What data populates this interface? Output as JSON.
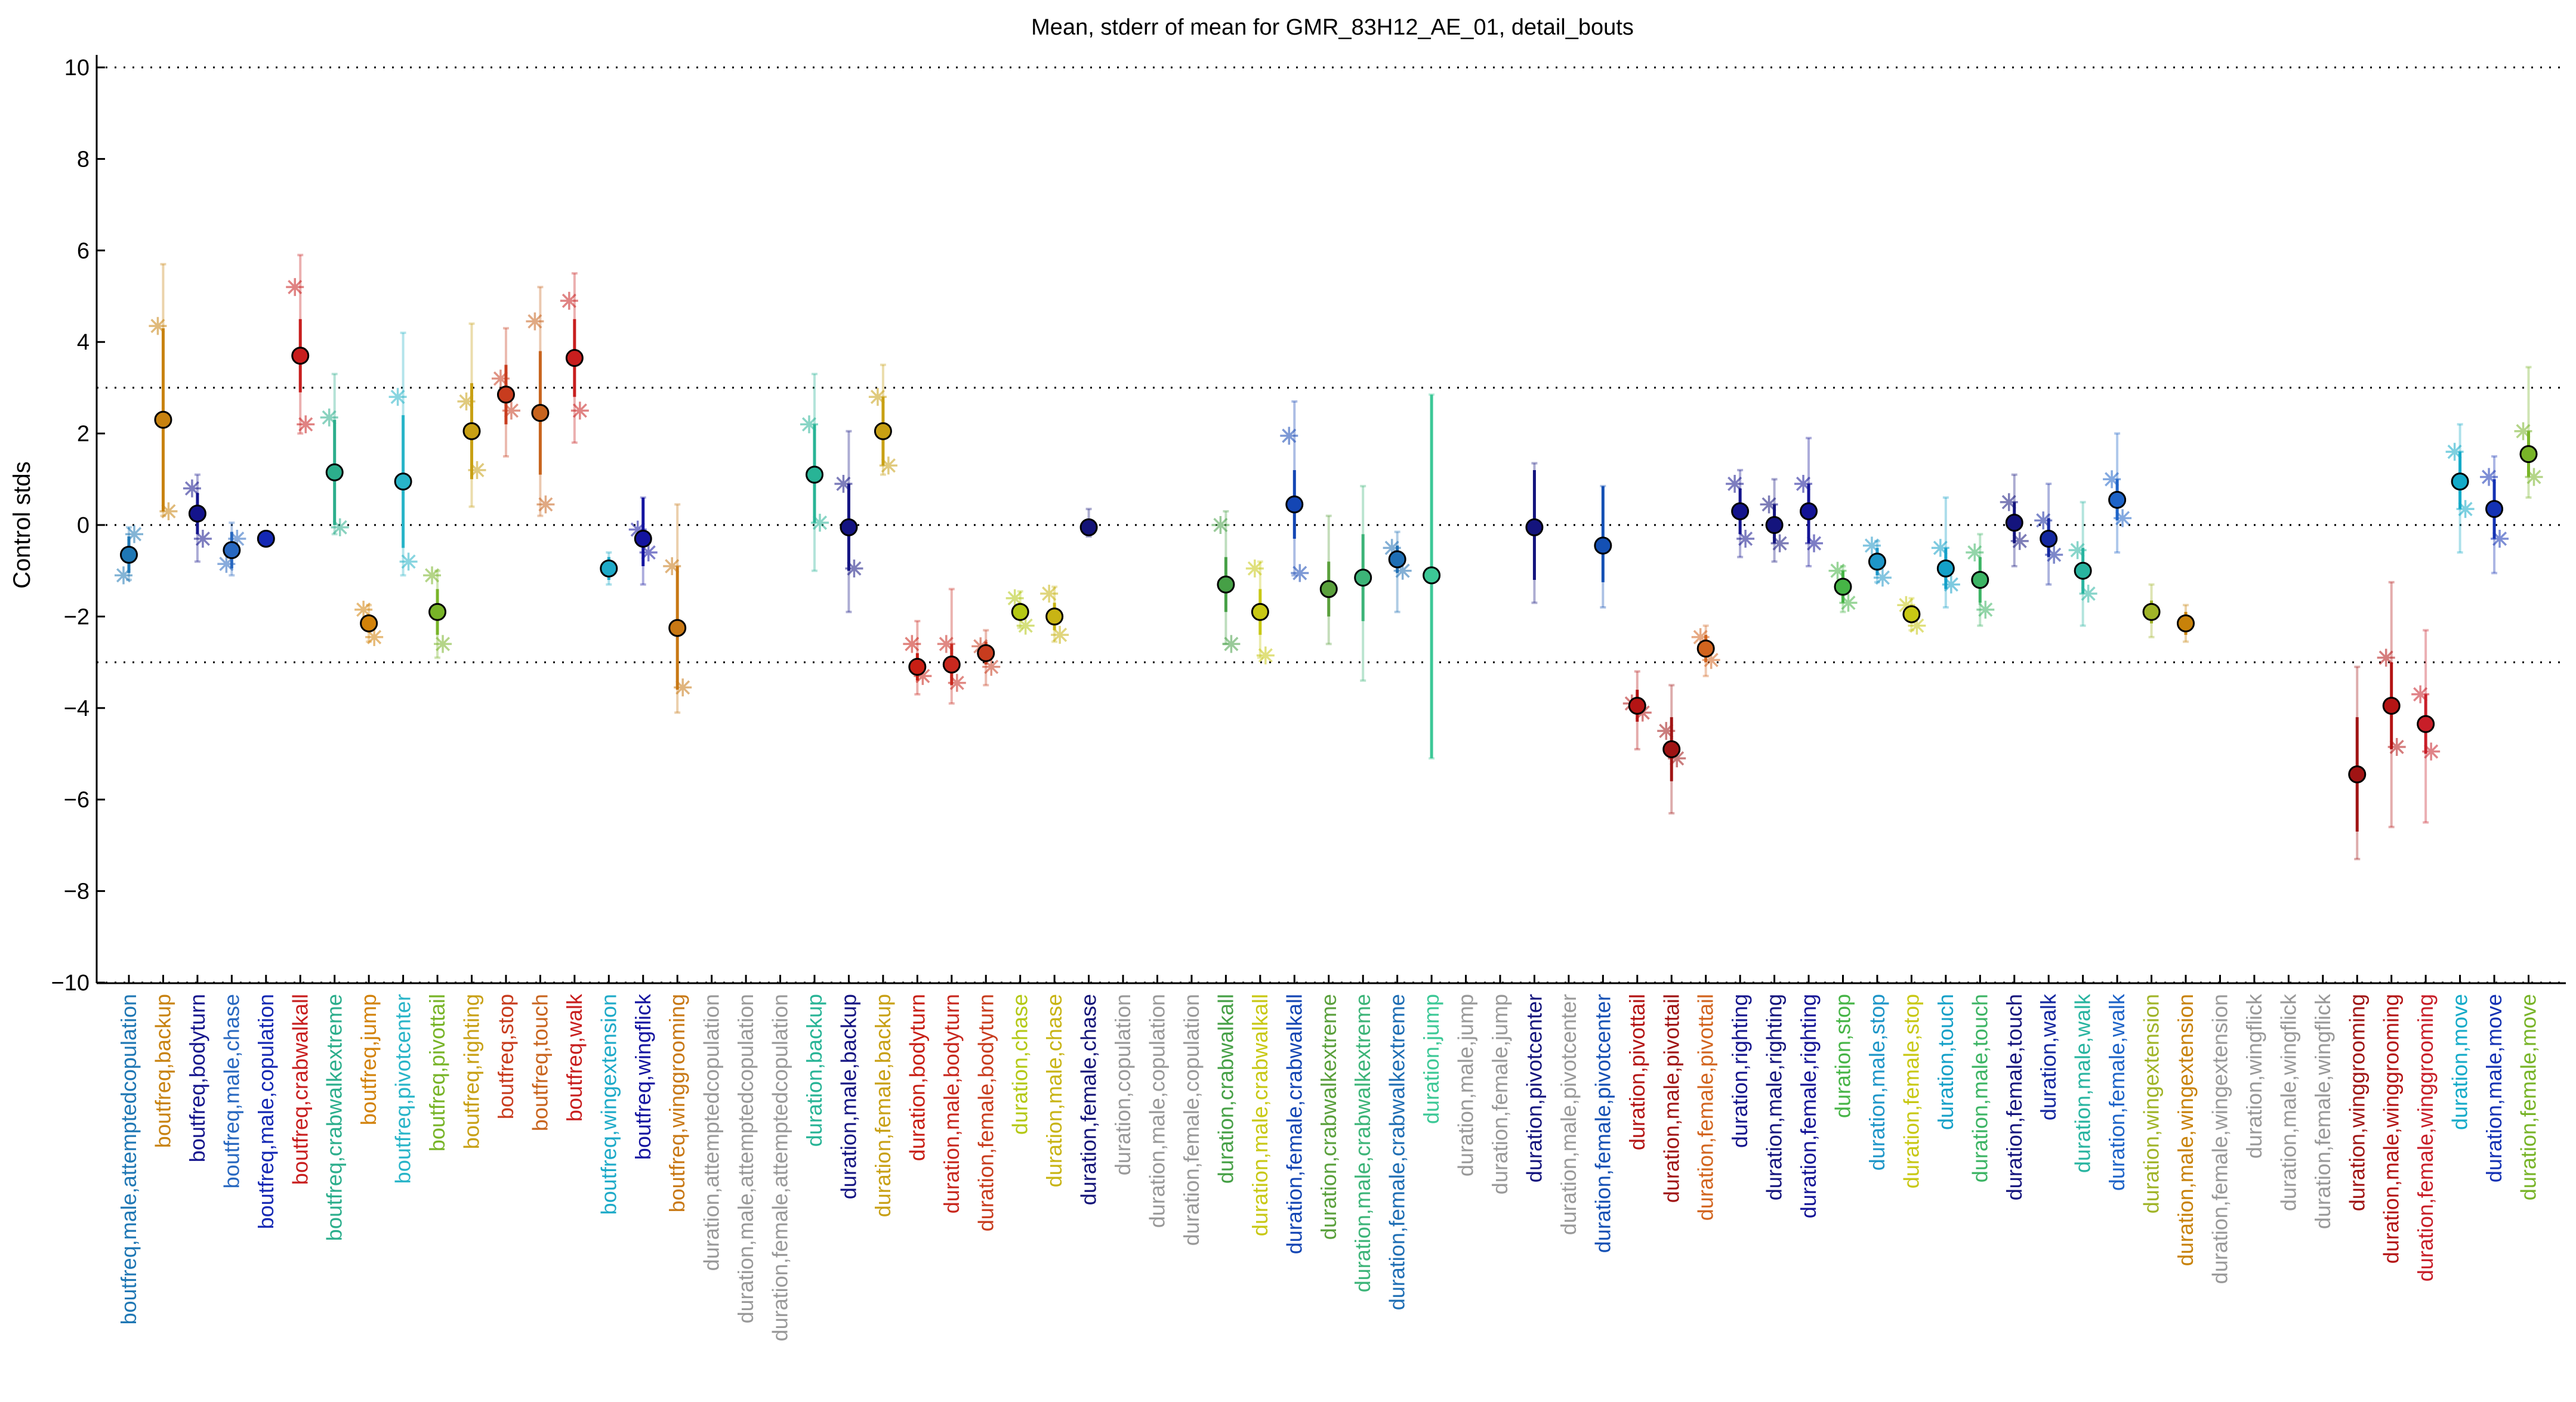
{
  "chart_data": {
    "type": "scatter",
    "title": "Mean, stderr of mean for GMR_83H12_AE_01, detail_bouts",
    "ylabel": "Control stds",
    "xlabel": "",
    "ylim": [
      -10.2,
      10.2
    ],
    "yticks": [
      -10,
      -8,
      -6,
      -4,
      -2,
      0,
      2,
      4,
      6,
      8,
      10
    ],
    "reference_lines": [
      10,
      3,
      0,
      -3,
      -10
    ],
    "grid": false,
    "points": [
      {
        "label": "boutfreq,male,attemptedcopulation",
        "color": "#1f77b4",
        "mean": -0.65,
        "sem_lo": -1.05,
        "sem_hi": -0.25,
        "range": [
          -1.2,
          -0.05
        ],
        "stars": [
          -1.1,
          -0.2
        ]
      },
      {
        "label": "boutfreq,backup",
        "color": "#c8820f",
        "mean": 2.3,
        "sem_lo": 0.3,
        "sem_hi": 4.3,
        "range": [
          0.2,
          5.7
        ],
        "stars": [
          4.35,
          0.3
        ]
      },
      {
        "label": "boutfreq,bodyturn",
        "color": "#14148c",
        "mean": 0.25,
        "sem_lo": -0.2,
        "sem_hi": 0.7,
        "range": [
          -0.8,
          1.1
        ],
        "stars": [
          0.8,
          -0.3
        ]
      },
      {
        "label": "boutfreq,male,chase",
        "color": "#2868c0",
        "mean": -0.55,
        "sem_lo": -0.95,
        "sem_hi": -0.15,
        "range": [
          -1.1,
          0.05
        ],
        "stars": [
          -0.85,
          -0.3
        ]
      },
      {
        "label": "boutfreq,male,copulation",
        "color": "#1428b4",
        "mean": -0.3,
        "sem_lo": -0.4,
        "sem_hi": -0.2,
        "range": [
          -0.45,
          -0.15
        ],
        "stars": []
      },
      {
        "label": "boutfreq,crabwalkall",
        "color": "#c81e1e",
        "mean": 3.7,
        "sem_lo": 2.9,
        "sem_hi": 4.5,
        "range": [
          2.0,
          5.9
        ],
        "stars": [
          5.2,
          2.2
        ]
      },
      {
        "label": "boutfreq,crabwalkextreme",
        "color": "#2cae8c",
        "mean": 1.15,
        "sem_lo": 0.0,
        "sem_hi": 2.3,
        "range": [
          -0.2,
          3.3
        ],
        "stars": [
          2.35,
          -0.05
        ]
      },
      {
        "label": "boutfreq,jump",
        "color": "#d2820a",
        "mean": -2.15,
        "sem_lo": -2.35,
        "sem_hi": -1.95,
        "range": [
          -2.55,
          -1.75
        ],
        "stars": [
          -1.85,
          -2.45
        ]
      },
      {
        "label": "boutfreq,pivotcenter",
        "color": "#28b4c8",
        "mean": 0.95,
        "sem_lo": -0.5,
        "sem_hi": 2.4,
        "range": [
          -1.1,
          4.2
        ],
        "stars": [
          2.8,
          -0.8
        ]
      },
      {
        "label": "boutfreq,pivottail",
        "color": "#78b428",
        "mean": -1.9,
        "sem_lo": -2.4,
        "sem_hi": -1.4,
        "range": [
          -2.9,
          -1.0
        ],
        "stars": [
          -1.1,
          -2.6
        ]
      },
      {
        "label": "boutfreq,righting",
        "color": "#c8a014",
        "mean": 2.05,
        "sem_lo": 1.0,
        "sem_hi": 3.1,
        "range": [
          0.4,
          4.4
        ],
        "stars": [
          2.7,
          1.2
        ]
      },
      {
        "label": "boutfreq,stop",
        "color": "#c83c1e",
        "mean": 2.85,
        "sem_lo": 2.2,
        "sem_hi": 3.5,
        "range": [
          1.5,
          4.3
        ],
        "stars": [
          3.2,
          2.5
        ]
      },
      {
        "label": "boutfreq,touch",
        "color": "#c8641e",
        "mean": 2.45,
        "sem_lo": 1.1,
        "sem_hi": 3.8,
        "range": [
          0.2,
          5.2
        ],
        "stars": [
          4.45,
          0.45
        ]
      },
      {
        "label": "boutfreq,walk",
        "color": "#c81e1e",
        "mean": 3.65,
        "sem_lo": 2.8,
        "sem_hi": 4.5,
        "range": [
          1.8,
          5.5
        ],
        "stars": [
          4.9,
          2.5
        ]
      },
      {
        "label": "boutfreq,wingextension",
        "color": "#1eaac8",
        "mean": -0.95,
        "sem_lo": -1.2,
        "sem_hi": -0.7,
        "range": [
          -1.3,
          -0.6
        ],
        "stars": []
      },
      {
        "label": "boutfreq,wingflick",
        "color": "#1414a0",
        "mean": -0.3,
        "sem_lo": -0.9,
        "sem_hi": 0.6,
        "range": [
          -1.3,
          0.6
        ],
        "stars": [
          -0.1,
          -0.6
        ]
      },
      {
        "label": "boutfreq,winggrooming",
        "color": "#c87814",
        "mean": -2.25,
        "sem_lo": -3.6,
        "sem_hi": -0.9,
        "range": [
          -4.1,
          0.45
        ],
        "stars": [
          -0.9,
          -3.55
        ]
      },
      {
        "label": "duration,attemptedcopulation",
        "color": "#999999"
      },
      {
        "label": "duration,male,attemptedcopulation",
        "color": "#999999"
      },
      {
        "label": "duration,female,attemptedcopulation",
        "color": "#999999"
      },
      {
        "label": "duration,backup",
        "color": "#28b496",
        "mean": 1.1,
        "sem_lo": 0.05,
        "sem_hi": 2.2,
        "range": [
          -1.0,
          3.3
        ],
        "stars": [
          2.2,
          0.05
        ]
      },
      {
        "label": "duration,male,backup",
        "color": "#141482",
        "mean": -0.05,
        "sem_lo": -1.0,
        "sem_hi": 0.9,
        "range": [
          -1.9,
          2.05
        ],
        "stars": [
          0.9,
          -0.95
        ]
      },
      {
        "label": "duration,female,backup",
        "color": "#c8a014",
        "mean": 2.05,
        "sem_lo": 1.3,
        "sem_hi": 2.8,
        "range": [
          1.1,
          3.5
        ],
        "stars": [
          2.8,
          1.3
        ]
      },
      {
        "label": "duration,bodyturn",
        "color": "#c81e14",
        "mean": -3.1,
        "sem_lo": -3.4,
        "sem_hi": -2.8,
        "range": [
          -3.7,
          -2.1
        ],
        "stars": [
          -2.6,
          -3.3
        ]
      },
      {
        "label": "duration,male,bodyturn",
        "color": "#c8281e",
        "mean": -3.05,
        "sem_lo": -3.5,
        "sem_hi": -2.6,
        "range": [
          -3.9,
          -1.4
        ],
        "stars": [
          -2.6,
          -3.45
        ]
      },
      {
        "label": "duration,female,bodyturn",
        "color": "#c83c1e",
        "mean": -2.8,
        "sem_lo": -3.05,
        "sem_hi": -2.55,
        "range": [
          -3.5,
          -2.3
        ],
        "stars": [
          -2.65,
          -3.1
        ]
      },
      {
        "label": "duration,chase",
        "color": "#b4c814",
        "mean": -1.9,
        "sem_lo": -2.1,
        "sem_hi": -1.7,
        "range": [
          -2.25,
          -1.45
        ],
        "stars": [
          -1.6,
          -2.2
        ]
      },
      {
        "label": "duration,male,chase",
        "color": "#c8b414",
        "mean": -2.0,
        "sem_lo": -2.3,
        "sem_hi": -1.7,
        "range": [
          -2.55,
          -1.35
        ],
        "stars": [
          -1.5,
          -2.4
        ]
      },
      {
        "label": "duration,female,chase",
        "color": "#141478",
        "mean": -0.05,
        "sem_lo": -0.15,
        "sem_hi": 0.05,
        "range": [
          -0.25,
          0.35
        ],
        "stars": []
      },
      {
        "label": "duration,copulation",
        "color": "#999999"
      },
      {
        "label": "duration,male,copulation",
        "color": "#999999"
      },
      {
        "label": "duration,female,copulation",
        "color": "#999999"
      },
      {
        "label": "duration,crabwalkall",
        "color": "#46a046",
        "mean": -1.3,
        "sem_lo": -1.9,
        "sem_hi": -0.7,
        "range": [
          -2.6,
          0.3
        ],
        "stars": [
          0.0,
          -2.6
        ]
      },
      {
        "label": "duration,male,crabwalkall",
        "color": "#c8c814",
        "mean": -1.9,
        "sem_lo": -2.4,
        "sem_hi": -1.4,
        "range": [
          -2.9,
          -0.8
        ],
        "stars": [
          -0.95,
          -2.85
        ]
      },
      {
        "label": "duration,female,crabwalkall",
        "color": "#1446b4",
        "mean": 0.45,
        "sem_lo": -0.3,
        "sem_hi": 1.2,
        "range": [
          -1.1,
          2.7
        ],
        "stars": [
          1.95,
          -1.05
        ]
      },
      {
        "label": "duration,crabwalkextreme",
        "color": "#5aa03c",
        "mean": -1.4,
        "sem_lo": -2.0,
        "sem_hi": -0.8,
        "range": [
          -2.6,
          0.2
        ],
        "stars": []
      },
      {
        "label": "duration,male,crabwalkextreme",
        "color": "#3cb478",
        "mean": -1.15,
        "sem_lo": -2.1,
        "sem_hi": -0.2,
        "range": [
          -3.4,
          0.85
        ],
        "stars": []
      },
      {
        "label": "duration,female,crabwalkextreme",
        "color": "#1e6eb4",
        "mean": -0.75,
        "sem_lo": -1.05,
        "sem_hi": -0.45,
        "range": [
          -1.9,
          -0.15
        ],
        "stars": [
          -0.5,
          -1.0
        ]
      },
      {
        "label": "duration,jump",
        "color": "#3cc896",
        "mean": -1.1,
        "sem_lo": -5.1,
        "sem_hi": 2.85,
        "range": [
          -5.1,
          2.85
        ],
        "stars": []
      },
      {
        "label": "duration,male,jump",
        "color": "#999999"
      },
      {
        "label": "duration,female,jump",
        "color": "#999999"
      },
      {
        "label": "duration,pivotcenter",
        "color": "#14147d",
        "mean": -0.05,
        "sem_lo": -1.2,
        "sem_hi": 1.2,
        "range": [
          -1.7,
          1.35
        ],
        "stars": []
      },
      {
        "label": "duration,male,pivotcenter",
        "color": "#999999"
      },
      {
        "label": "duration,female,pivotcenter",
        "color": "#1450b4",
        "mean": -0.45,
        "sem_lo": -1.25,
        "sem_hi": 0.85,
        "range": [
          -1.8,
          0.85
        ],
        "stars": []
      },
      {
        "label": "duration,pivottail",
        "color": "#b41414",
        "mean": -3.95,
        "sem_lo": -4.3,
        "sem_hi": -3.6,
        "range": [
          -4.9,
          -3.2
        ],
        "stars": [
          -3.9,
          -4.1
        ]
      },
      {
        "label": "duration,male,pivottail",
        "color": "#a01414",
        "mean": -4.9,
        "sem_lo": -5.6,
        "sem_hi": -4.2,
        "range": [
          -6.3,
          -3.5
        ],
        "stars": [
          -4.5,
          -5.1
        ]
      },
      {
        "label": "duration,female,pivottail",
        "color": "#d2641e",
        "mean": -2.7,
        "sem_lo": -3.0,
        "sem_hi": -2.4,
        "range": [
          -3.3,
          -2.2
        ],
        "stars": [
          -2.45,
          -2.95
        ]
      },
      {
        "label": "duration,righting",
        "color": "#14148c",
        "mean": 0.3,
        "sem_lo": -0.2,
        "sem_hi": 0.8,
        "range": [
          -0.7,
          1.2
        ],
        "stars": [
          0.9,
          -0.3
        ]
      },
      {
        "label": "duration,male,righting",
        "color": "#14147d",
        "mean": 0.0,
        "sem_lo": -0.4,
        "sem_hi": 0.45,
        "range": [
          -0.8,
          1.0
        ],
        "stars": [
          0.45,
          -0.4
        ]
      },
      {
        "label": "duration,female,righting",
        "color": "#141496",
        "mean": 0.3,
        "sem_lo": -0.4,
        "sem_hi": 0.9,
        "range": [
          -0.9,
          1.9
        ],
        "stars": [
          0.9,
          -0.4
        ]
      },
      {
        "label": "duration,stop",
        "color": "#46b446",
        "mean": -1.35,
        "sem_lo": -1.7,
        "sem_hi": -1.0,
        "range": [
          -1.9,
          -0.9
        ],
        "stars": [
          -1.0,
          -1.7
        ]
      },
      {
        "label": "duration,male,stop",
        "color": "#1e96c8",
        "mean": -0.8,
        "sem_lo": -1.1,
        "sem_hi": -0.5,
        "range": [
          -1.25,
          -0.35
        ],
        "stars": [
          -0.45,
          -1.15
        ]
      },
      {
        "label": "duration,female,stop",
        "color": "#c8c814",
        "mean": -1.95,
        "sem_lo": -2.15,
        "sem_hi": -1.75,
        "range": [
          -2.3,
          -1.6
        ],
        "stars": [
          -1.75,
          -2.2
        ]
      },
      {
        "label": "duration,touch",
        "color": "#14a0c8",
        "mean": -0.95,
        "sem_lo": -1.4,
        "sem_hi": -0.5,
        "range": [
          -1.8,
          0.6
        ],
        "stars": [
          -0.5,
          -1.3
        ]
      },
      {
        "label": "duration,male,touch",
        "color": "#3cb464",
        "mean": -1.2,
        "sem_lo": -1.7,
        "sem_hi": -0.7,
        "range": [
          -2.2,
          -0.2
        ],
        "stars": [
          -0.6,
          -1.85
        ]
      },
      {
        "label": "duration,female,touch",
        "color": "#14147d",
        "mean": 0.05,
        "sem_lo": -0.4,
        "sem_hi": 0.5,
        "range": [
          -0.9,
          1.1
        ],
        "stars": [
          0.5,
          -0.35
        ]
      },
      {
        "label": "duration,walk",
        "color": "#1428a0",
        "mean": -0.3,
        "sem_lo": -0.7,
        "sem_hi": 0.15,
        "range": [
          -1.3,
          0.9
        ],
        "stars": [
          0.1,
          -0.65
        ]
      },
      {
        "label": "duration,male,walk",
        "color": "#28b4a0",
        "mean": -1.0,
        "sem_lo": -1.5,
        "sem_hi": -0.5,
        "range": [
          -2.2,
          0.5
        ],
        "stars": [
          -0.55,
          -1.5
        ]
      },
      {
        "label": "duration,female,walk",
        "color": "#1e64c8",
        "mean": 0.55,
        "sem_lo": 0.1,
        "sem_hi": 1.0,
        "range": [
          -0.6,
          2.0
        ],
        "stars": [
          1.0,
          0.15
        ]
      },
      {
        "label": "duration,wingextension",
        "color": "#a0b428",
        "mean": -1.9,
        "sem_lo": -2.15,
        "sem_hi": -1.65,
        "range": [
          -2.45,
          -1.3
        ],
        "stars": []
      },
      {
        "label": "duration,male,wingextension",
        "color": "#c8820a",
        "mean": -2.15,
        "sem_lo": -2.4,
        "sem_hi": -1.9,
        "range": [
          -2.55,
          -1.75
        ],
        "stars": []
      },
      {
        "label": "duration,female,wingextension",
        "color": "#999999"
      },
      {
        "label": "duration,wingflick",
        "color": "#999999"
      },
      {
        "label": "duration,male,wingflick",
        "color": "#999999"
      },
      {
        "label": "duration,female,wingflick",
        "color": "#999999"
      },
      {
        "label": "duration,winggrooming",
        "color": "#a01414",
        "mean": -5.45,
        "sem_lo": -6.7,
        "sem_hi": -4.2,
        "range": [
          -7.3,
          -3.1
        ],
        "stars": []
      },
      {
        "label": "duration,male,winggrooming",
        "color": "#b41414",
        "mean": -3.95,
        "sem_lo": -4.9,
        "sem_hi": -3.0,
        "range": [
          -6.6,
          -1.25
        ],
        "stars": [
          -2.9,
          -4.85
        ]
      },
      {
        "label": "duration,female,winggrooming",
        "color": "#c81e28",
        "mean": -4.35,
        "sem_lo": -5.0,
        "sem_hi": -3.7,
        "range": [
          -6.5,
          -2.3
        ],
        "stars": [
          -3.7,
          -4.95
        ]
      },
      {
        "label": "duration,move",
        "color": "#14aac8",
        "mean": 0.95,
        "sem_lo": 0.35,
        "sem_hi": 1.6,
        "range": [
          -0.6,
          2.2
        ],
        "stars": [
          1.6,
          0.35
        ]
      },
      {
        "label": "duration,male,move",
        "color": "#1432b4",
        "mean": 0.35,
        "sem_lo": -0.3,
        "sem_hi": 1.0,
        "range": [
          -1.05,
          1.5
        ],
        "stars": [
          1.05,
          -0.3
        ]
      },
      {
        "label": "duration,female,move",
        "color": "#78b428",
        "mean": 1.55,
        "sem_lo": 1.05,
        "sem_hi": 2.05,
        "range": [
          0.6,
          3.45
        ],
        "stars": [
          2.05,
          1.05
        ]
      }
    ]
  }
}
